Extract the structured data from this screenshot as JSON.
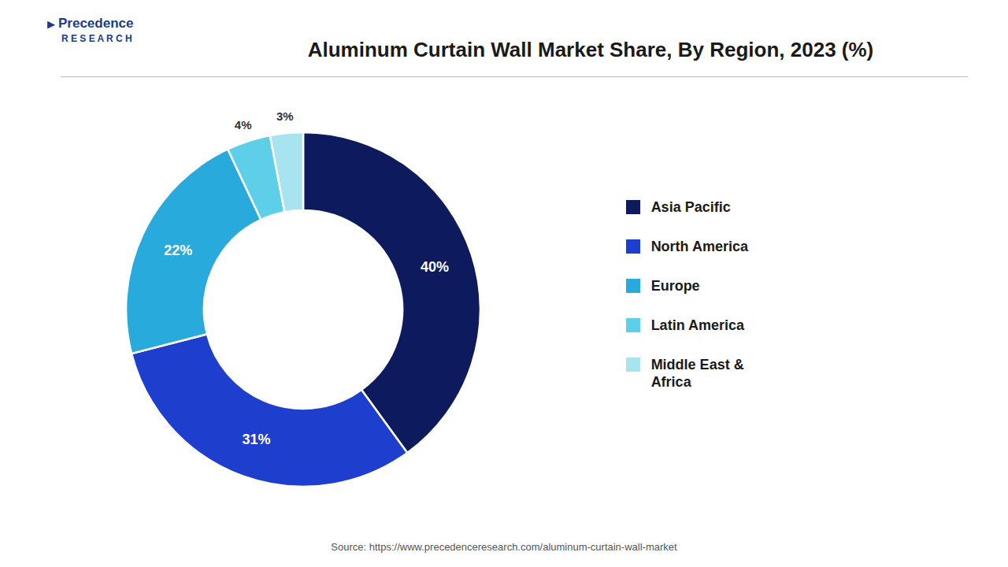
{
  "chart_data": {
    "type": "pie",
    "title": "Aluminum Curtain Wall Market Share, By Region, 2023 (%)",
    "categories": [
      "Asia Pacific",
      "North America",
      "Europe",
      "Latin America",
      "Middle East &\nAfrica"
    ],
    "values": [
      40,
      31,
      22,
      4,
      3
    ],
    "value_labels": [
      "40%",
      "31%",
      "22%",
      "4%",
      "3%"
    ],
    "data_labels": true,
    "colors": [
      "#0d1b5e",
      "#1e3fce",
      "#29aadc",
      "#5ecfe8",
      "#a8e4ef"
    ],
    "legend": "right",
    "annotations": [
      "▶",
      "Precedence",
      "R E S E A R C H",
      "Source: https://www.precedenceresearch.com/aluminum-curtain-wall-market"
    ]
  }
}
